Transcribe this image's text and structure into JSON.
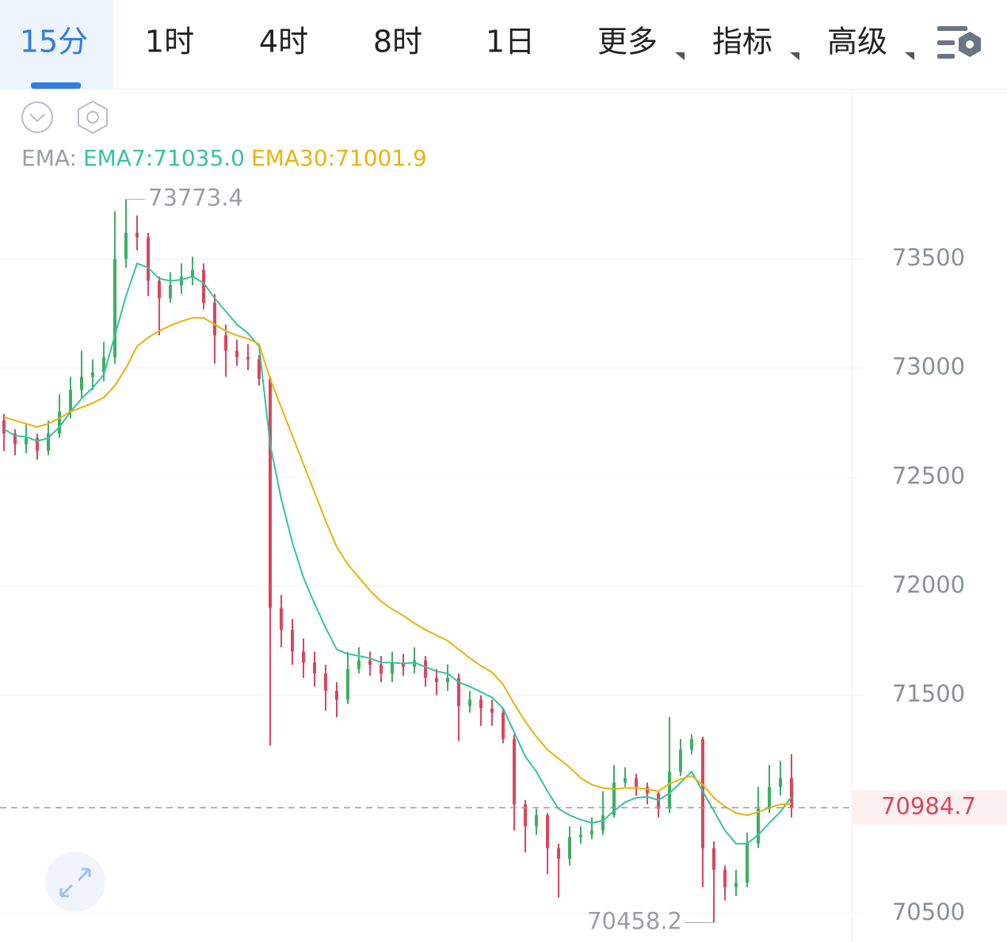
{
  "tabs": [
    "15分",
    "1时",
    "4时",
    "8时",
    "1日",
    "更多",
    "指标",
    "高级"
  ],
  "active_tab": 0,
  "chart_data": {
    "type": "candlestick",
    "legend": [
      {
        "text": "EMA:",
        "color": "#9a9ea6"
      },
      {
        "text": "EMA7:71035.0",
        "color": "#35c3a2"
      },
      {
        "text": "EMA30:71001.9",
        "color": "#eab30b"
      }
    ],
    "up_color": "#3fae63",
    "down_color": "#d9475d",
    "open": [
      72760,
      72700,
      72650,
      72680,
      72620,
      72700,
      72800,
      72900,
      72960,
      72980,
      73050,
      73500,
      73620,
      73600,
      73400,
      73320,
      73380,
      73420,
      73450,
      73300,
      73150,
      73080,
      73050,
      73040,
      72950,
      71900,
      71800,
      71700,
      71650,
      71600,
      71520,
      71480,
      71620,
      71660,
      71640,
      71600,
      71650,
      71630,
      71660,
      71580,
      71560,
      71580,
      71450,
      71480,
      71440,
      71420,
      71300,
      71000,
      70900,
      70950,
      70800,
      70750,
      70850,
      70860,
      70880,
      70950,
      71100,
      71120,
      71080,
      71050,
      70980,
      71150,
      71250,
      71300,
      70800,
      70700,
      70620,
      70640,
      70820,
      70980,
      71080,
      71120
    ],
    "high": [
      72790,
      72720,
      72740,
      72700,
      72760,
      72880,
      72960,
      73080,
      73040,
      73120,
      73720,
      73773.4,
      73700,
      73620,
      73420,
      73440,
      73480,
      73510,
      73480,
      73340,
      73200,
      73130,
      73110,
      73060,
      72960,
      71960,
      71850,
      71760,
      71700,
      71640,
      71560,
      71700,
      71720,
      71700,
      71680,
      71700,
      71690,
      71720,
      71680,
      71620,
      71640,
      71600,
      71520,
      71500,
      71480,
      71440,
      71320,
      71020,
      70980,
      70960,
      70820,
      70900,
      70900,
      70940,
      71060,
      71180,
      71170,
      71140,
      71100,
      71060,
      71400,
      71300,
      71320,
      71310,
      70830,
      70720,
      70700,
      70870,
      71080,
      71180,
      71200,
      71230
    ],
    "low": [
      72620,
      72600,
      72610,
      72580,
      72600,
      72680,
      72770,
      72860,
      72900,
      72940,
      73020,
      73460,
      73540,
      73330,
      73150,
      73300,
      73340,
      73380,
      73270,
      73020,
      72960,
      73010,
      72990,
      72920,
      71270,
      71720,
      71640,
      71580,
      71540,
      71430,
      71400,
      71460,
      71600,
      71590,
      71560,
      71560,
      71590,
      71600,
      71540,
      71500,
      71520,
      71290,
      71420,
      71360,
      71360,
      71280,
      70880,
      70780,
      70860,
      70680,
      70573,
      70720,
      70820,
      70840,
      70860,
      70940,
      71080,
      71040,
      71000,
      70940,
      70960,
      71130,
      71230,
      70620,
      70458.2,
      70560,
      70580,
      70620,
      70800,
      70960,
      71040,
      70940
    ],
    "close": [
      72700,
      72650,
      72680,
      72620,
      72700,
      72800,
      72900,
      72960,
      72980,
      73050,
      73500,
      73620,
      73600,
      73400,
      73320,
      73380,
      73420,
      73450,
      73300,
      73150,
      73080,
      73050,
      73040,
      72950,
      71900,
      71800,
      71700,
      71650,
      71600,
      71520,
      71480,
      71620,
      71660,
      71640,
      71600,
      71650,
      71630,
      71660,
      71580,
      71560,
      71580,
      71450,
      71480,
      71440,
      71420,
      71300,
      71000,
      70900,
      70950,
      70800,
      70750,
      70850,
      70860,
      70880,
      70950,
      71100,
      71120,
      71080,
      71050,
      70980,
      71150,
      71250,
      71300,
      70800,
      70700,
      70620,
      70640,
      70820,
      70980,
      71080,
      71120,
      70984.7
    ],
    "series": [
      {
        "name": "EMA7",
        "color": "#35c3a2",
        "values": [
          72720,
          72690,
          72685,
          72665,
          72680,
          72730,
          72800,
          72860,
          72910,
          72970,
          73150,
          73330,
          73480,
          73460,
          73410,
          73400,
          73405,
          73420,
          73390,
          73320,
          73260,
          73200,
          73160,
          73100,
          72650,
          72400,
          72200,
          72040,
          71920,
          71810,
          71710,
          71690,
          71680,
          71670,
          71650,
          71650,
          71645,
          71650,
          71630,
          71610,
          71600,
          71560,
          71540,
          71515,
          71490,
          71440,
          71330,
          71220,
          71150,
          71060,
          70980,
          70950,
          70930,
          70915,
          70925,
          70970,
          71010,
          71030,
          71035,
          71020,
          71050,
          71100,
          71150,
          71060,
          70970,
          70880,
          70820,
          70820,
          70860,
          70915,
          70965,
          71035
        ]
      },
      {
        "name": "EMA30",
        "color": "#eab30b",
        "values": [
          72775,
          72760,
          72745,
          72730,
          72745,
          72770,
          72800,
          72820,
          72840,
          72865,
          72920,
          73000,
          73100,
          73140,
          73170,
          73195,
          73215,
          73230,
          73230,
          73200,
          73170,
          73150,
          73135,
          73110,
          72950,
          72820,
          72690,
          72560,
          72430,
          72300,
          72180,
          72100,
          72040,
          71980,
          71930,
          71895,
          71865,
          71830,
          71800,
          71775,
          71750,
          71710,
          71670,
          71635,
          71605,
          71550,
          71460,
          71380,
          71310,
          71250,
          71210,
          71170,
          71120,
          71090,
          71075,
          71070,
          71075,
          71075,
          71070,
          71060,
          71095,
          71115,
          71130,
          71090,
          71030,
          70990,
          70960,
          70950,
          70965,
          70985,
          71000,
          71001.9
        ]
      }
    ],
    "ylim": [
      70369,
      74277
    ],
    "yticks": [
      70500,
      71500,
      72000,
      72500,
      73000,
      73500
    ],
    "grid": true
  }
}
